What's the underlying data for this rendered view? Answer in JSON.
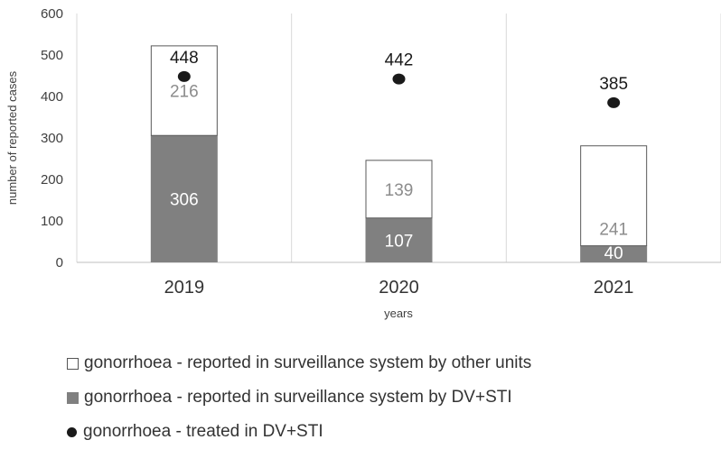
{
  "chart_data": {
    "type": "bar",
    "categories": [
      "2019",
      "2020",
      "2021"
    ],
    "series": [
      {
        "name": "gonorrhoea - reported in surveillance system by DV+STI",
        "values": [
          306,
          107,
          40
        ],
        "color": "#808080",
        "stack": "reported"
      },
      {
        "name": "gonorrhoea - reported in surveillance system by other units",
        "values": [
          216,
          139,
          241
        ],
        "color": "#ffffff",
        "stack": "reported"
      },
      {
        "name": "gonorrhoea - treated in DV+STI",
        "values": [
          448,
          442,
          385
        ],
        "color": "#1a1a1a",
        "marker": "point"
      }
    ],
    "yticks": [
      0,
      100,
      200,
      300,
      400,
      500,
      600
    ],
    "ylim": [
      0,
      600
    ],
    "xlabel": "years",
    "ylabel": "number of reported cases",
    "grid": "vertical-separators",
    "legend_position": "bottom"
  }
}
